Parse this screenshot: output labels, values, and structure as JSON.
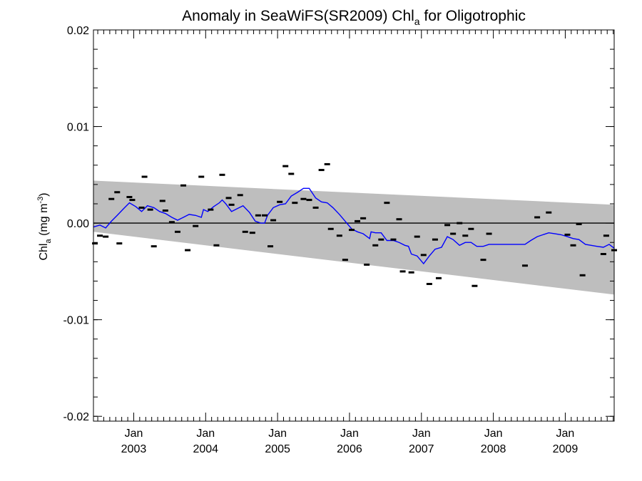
{
  "chart_data": {
    "type": "line",
    "title": {
      "prefix": "Anomaly in SeaWiFS(SR2009) Chl",
      "subscript": "a",
      "suffix": " for Oligotrophic"
    },
    "ylabel": {
      "prefix": "Chl",
      "subscript": "a",
      "middle": " (mg m",
      "superscript": "-3",
      "suffix": ")"
    },
    "ylim": [
      -0.0205,
      0.02
    ],
    "xlim": [
      2002.44,
      2009.68
    ],
    "y_ticks": [
      {
        "value": 0.02,
        "label": "0.02"
      },
      {
        "value": 0.01,
        "label": "0.01"
      },
      {
        "value": 0.0,
        "label": "0.00"
      },
      {
        "value": -0.01,
        "label": "-0.01"
      },
      {
        "value": -0.02,
        "label": "-0.02"
      }
    ],
    "x_ticks": [
      {
        "value": 2003.0,
        "month": "Jan",
        "year": "2003"
      },
      {
        "value": 2004.0,
        "month": "Jan",
        "year": "2004"
      },
      {
        "value": 2005.0,
        "month": "Jan",
        "year": "2005"
      },
      {
        "value": 2006.0,
        "month": "Jan",
        "year": "2006"
      },
      {
        "value": 2007.0,
        "month": "Jan",
        "year": "2007"
      },
      {
        "value": 2008.0,
        "month": "Jan",
        "year": "2008"
      },
      {
        "value": 2009.0,
        "month": "Jan",
        "year": "2009"
      }
    ],
    "x_minor_ticks": [
      2002.5,
      2002.583,
      2002.667,
      2002.75,
      2002.833,
      2002.917,
      2003.083,
      2003.167,
      2003.25,
      2003.333,
      2003.417,
      2003.5,
      2003.583,
      2003.667,
      2003.75,
      2003.833,
      2003.917,
      2004.083,
      2004.167,
      2004.25,
      2004.333,
      2004.417,
      2004.5,
      2004.583,
      2004.667,
      2004.75,
      2004.833,
      2004.917,
      2005.083,
      2005.167,
      2005.25,
      2005.333,
      2005.417,
      2005.5,
      2005.583,
      2005.667,
      2005.75,
      2005.833,
      2005.917,
      2006.083,
      2006.167,
      2006.25,
      2006.333,
      2006.417,
      2006.5,
      2006.583,
      2006.667,
      2006.75,
      2006.833,
      2006.917,
      2007.083,
      2007.167,
      2007.25,
      2007.333,
      2007.417,
      2007.5,
      2007.583,
      2007.667,
      2007.75,
      2007.833,
      2007.917,
      2008.083,
      2008.167,
      2008.25,
      2008.333,
      2008.417,
      2008.5,
      2008.583,
      2008.667,
      2008.75,
      2008.833,
      2008.917,
      2009.083,
      2009.167,
      2009.25,
      2009.333,
      2009.417,
      2009.5,
      2009.583,
      2009.667
    ],
    "y_minor_step": 0.002,
    "zero_line": 0.0,
    "band": {
      "name": "",
      "color": "#bebebe",
      "upper": [
        [
          2002.44,
          0.0044
        ],
        [
          2009.68,
          0.0019
        ]
      ],
      "lower": [
        [
          2002.44,
          -0.0009
        ],
        [
          2009.68,
          -0.0074
        ]
      ]
    },
    "series": [
      {
        "type": "line",
        "color": "#0000ff",
        "points": [
          [
            2002.44,
            -0.0004
          ],
          [
            2002.53,
            -0.0002
          ],
          [
            2002.61,
            -0.0005
          ],
          [
            2002.69,
            0.0002
          ],
          [
            2002.77,
            0.0008
          ],
          [
            2002.86,
            0.0015
          ],
          [
            2002.94,
            0.0021
          ],
          [
            2003.03,
            0.0017
          ],
          [
            2003.11,
            0.0012
          ],
          [
            2003.19,
            0.0018
          ],
          [
            2003.28,
            0.0016
          ],
          [
            2003.36,
            0.0012
          ],
          [
            2003.44,
            0.001
          ],
          [
            2003.53,
            0.0006
          ],
          [
            2003.61,
            0.0003
          ],
          [
            2003.69,
            0.0006
          ],
          [
            2003.77,
            0.0009
          ],
          [
            2003.86,
            0.0008
          ],
          [
            2003.94,
            0.0006
          ],
          [
            2003.97,
            0.0014
          ],
          [
            2004.03,
            0.0012
          ],
          [
            2004.11,
            0.0017
          ],
          [
            2004.19,
            0.0021
          ],
          [
            2004.23,
            0.0024
          ],
          [
            2004.28,
            0.002
          ],
          [
            2004.36,
            0.0012
          ],
          [
            2004.44,
            0.0015
          ],
          [
            2004.52,
            0.0018
          ],
          [
            2004.61,
            0.0011
          ],
          [
            2004.69,
            0.0002
          ],
          [
            2004.77,
            0.0
          ],
          [
            2004.82,
            0.0
          ],
          [
            2004.86,
            0.0008
          ],
          [
            2004.94,
            0.0016
          ],
          [
            2005.03,
            0.0019
          ],
          [
            2005.11,
            0.002
          ],
          [
            2005.19,
            0.0028
          ],
          [
            2005.28,
            0.0032
          ],
          [
            2005.36,
            0.0036
          ],
          [
            2005.44,
            0.0036
          ],
          [
            2005.53,
            0.0026
          ],
          [
            2005.61,
            0.0022
          ],
          [
            2005.69,
            0.0021
          ],
          [
            2005.77,
            0.0016
          ],
          [
            2005.86,
            0.0009
          ],
          [
            2005.94,
            0.0002
          ],
          [
            2006.03,
            -0.0006
          ],
          [
            2006.11,
            -0.0009
          ],
          [
            2006.19,
            -0.0011
          ],
          [
            2006.28,
            -0.0016
          ],
          [
            2006.3,
            -0.0009
          ],
          [
            2006.36,
            -0.001
          ],
          [
            2006.44,
            -0.001
          ],
          [
            2006.52,
            -0.0018
          ],
          [
            2006.61,
            -0.0018
          ],
          [
            2006.69,
            -0.002
          ],
          [
            2006.77,
            -0.0023
          ],
          [
            2006.82,
            -0.0024
          ],
          [
            2006.86,
            -0.0032
          ],
          [
            2006.94,
            -0.0034
          ],
          [
            2007.03,
            -0.0042
          ],
          [
            2007.11,
            -0.0034
          ],
          [
            2007.19,
            -0.0027
          ],
          [
            2007.28,
            -0.0025
          ],
          [
            2007.36,
            -0.0014
          ],
          [
            2007.44,
            -0.0017
          ],
          [
            2007.53,
            -0.0023
          ],
          [
            2007.61,
            -0.002
          ],
          [
            2007.69,
            -0.002
          ],
          [
            2007.77,
            -0.0024
          ],
          [
            2007.86,
            -0.0024
          ],
          [
            2007.94,
            -0.0022
          ],
          [
            2008.44,
            -0.0022
          ],
          [
            2008.52,
            -0.0018
          ],
          [
            2008.61,
            -0.0014
          ],
          [
            2008.69,
            -0.0012
          ],
          [
            2008.77,
            -0.001
          ],
          [
            2008.86,
            -0.0011
          ],
          [
            2008.94,
            -0.0012
          ],
          [
            2009.03,
            -0.0014
          ],
          [
            2009.11,
            -0.0016
          ],
          [
            2009.19,
            -0.0017
          ],
          [
            2009.28,
            -0.0022
          ],
          [
            2009.36,
            -0.0023
          ],
          [
            2009.44,
            -0.0024
          ],
          [
            2009.53,
            -0.0025
          ],
          [
            2009.61,
            -0.0022
          ],
          [
            2009.68,
            -0.0026
          ]
        ]
      },
      {
        "type": "scatter",
        "color": "#000000",
        "marker": "dash",
        "points": [
          [
            2002.46,
            -0.0021
          ],
          [
            2002.53,
            -0.0013
          ],
          [
            2002.61,
            -0.0014
          ],
          [
            2002.69,
            0.0025
          ],
          [
            2002.77,
            0.0032
          ],
          [
            2002.8,
            -0.0021
          ],
          [
            2002.94,
            0.0027
          ],
          [
            2002.98,
            0.0024
          ],
          [
            2003.11,
            0.0016
          ],
          [
            2003.15,
            0.0048
          ],
          [
            2003.23,
            0.0014
          ],
          [
            2003.28,
            -0.0024
          ],
          [
            2003.4,
            0.0023
          ],
          [
            2003.44,
            0.0013
          ],
          [
            2003.53,
            0.0001
          ],
          [
            2003.61,
            -0.0009
          ],
          [
            2003.69,
            0.0039
          ],
          [
            2003.75,
            -0.0028
          ],
          [
            2003.86,
            -0.0003
          ],
          [
            2003.94,
            0.0048
          ],
          [
            2004.07,
            0.0014
          ],
          [
            2004.15,
            -0.0023
          ],
          [
            2004.23,
            0.005
          ],
          [
            2004.32,
            0.0026
          ],
          [
            2004.36,
            0.0019
          ],
          [
            2004.48,
            0.0029
          ],
          [
            2004.55,
            -0.0009
          ],
          [
            2004.65,
            -0.001
          ],
          [
            2004.73,
            0.0008
          ],
          [
            2004.82,
            0.0008
          ],
          [
            2004.9,
            -0.0024
          ],
          [
            2004.94,
            0.0003
          ],
          [
            2005.03,
            0.0022
          ],
          [
            2005.11,
            0.0059
          ],
          [
            2005.19,
            0.0051
          ],
          [
            2005.24,
            0.0021
          ],
          [
            2005.36,
            0.0025
          ],
          [
            2005.44,
            0.0024
          ],
          [
            2005.53,
            0.0016
          ],
          [
            2005.61,
            0.0055
          ],
          [
            2005.69,
            0.0061
          ],
          [
            2005.74,
            -0.0006
          ],
          [
            2005.86,
            -0.0013
          ],
          [
            2005.94,
            -0.0038
          ],
          [
            2006.03,
            -0.0007
          ],
          [
            2006.11,
            0.0002
          ],
          [
            2006.19,
            0.0005
          ],
          [
            2006.24,
            -0.0043
          ],
          [
            2006.36,
            -0.0023
          ],
          [
            2006.44,
            -0.0017
          ],
          [
            2006.52,
            0.0021
          ],
          [
            2006.61,
            -0.0017
          ],
          [
            2006.69,
            0.0004
          ],
          [
            2006.74,
            -0.005
          ],
          [
            2006.86,
            -0.0051
          ],
          [
            2006.94,
            -0.0014
          ],
          [
            2007.03,
            -0.0033
          ],
          [
            2007.11,
            -0.0063
          ],
          [
            2007.19,
            -0.0017
          ],
          [
            2007.24,
            -0.0057
          ],
          [
            2007.36,
            -0.0002
          ],
          [
            2007.44,
            -0.0011
          ],
          [
            2007.53,
            0.0
          ],
          [
            2007.61,
            -0.0013
          ],
          [
            2007.69,
            -0.0006
          ],
          [
            2007.74,
            -0.0065
          ],
          [
            2007.86,
            -0.0038
          ],
          [
            2007.94,
            -0.0011
          ],
          [
            2008.44,
            -0.0044
          ],
          [
            2008.61,
            0.0006
          ],
          [
            2008.77,
            0.0011
          ],
          [
            2009.03,
            -0.0012
          ],
          [
            2009.11,
            -0.0023
          ],
          [
            2009.19,
            -0.0001
          ],
          [
            2009.24,
            -0.0054
          ],
          [
            2009.53,
            -0.0032
          ],
          [
            2009.57,
            -0.0013
          ],
          [
            2009.68,
            -0.0028
          ]
        ]
      }
    ]
  }
}
